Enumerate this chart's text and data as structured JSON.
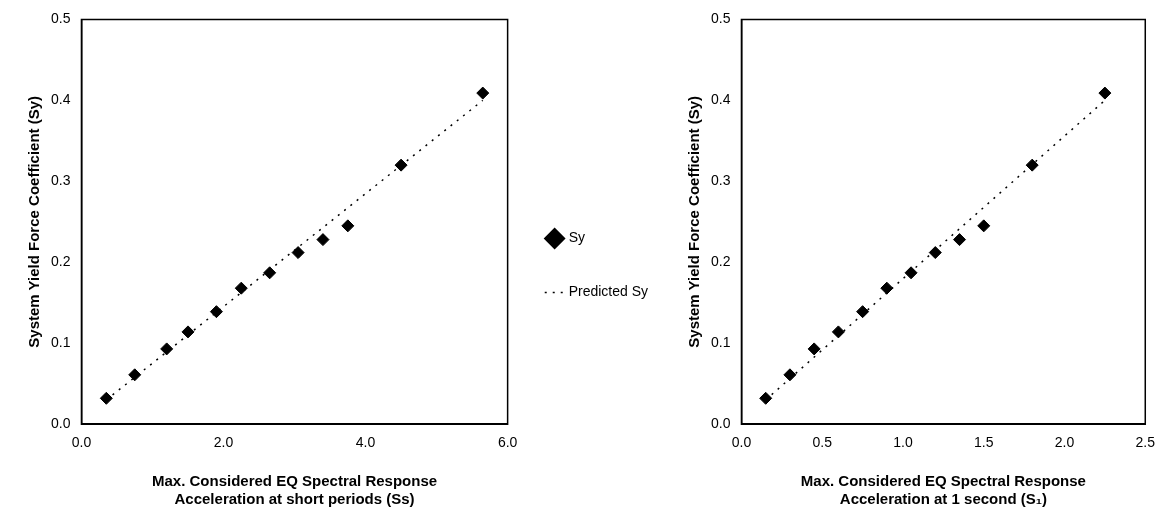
{
  "chart_data": [
    {
      "type": "scatter",
      "xlabel": "Max. Considered EQ Spectral Response Acceleration at short periods (Ss)",
      "ylabel": "System Yield Force Coefficient (Sy)",
      "xlim": [
        0,
        6
      ],
      "xticks": [
        {
          "value": 0,
          "label": "0.0"
        },
        {
          "value": 2,
          "label": "2.0"
        },
        {
          "value": 4,
          "label": "4.0"
        },
        {
          "value": 6,
          "label": "6.0"
        }
      ],
      "ylim": [
        0,
        0.5
      ],
      "yticks": [
        {
          "value": 0,
          "label": "0.0"
        },
        0.1,
        0.2,
        0.3,
        0.4,
        0.5
      ],
      "grid": false,
      "legend": "right",
      "series": [
        {
          "name": "Sy",
          "color": "#000000",
          "marker": "diamond",
          "x": [
            0.35,
            0.75,
            1.2,
            1.5,
            1.9,
            2.25,
            2.65,
            3.05,
            3.4,
            3.75,
            4.5,
            5.65
          ],
          "values": [
            0.032,
            0.061,
            0.093,
            0.114,
            0.139,
            0.168,
            0.187,
            0.212,
            0.228,
            0.245,
            0.32,
            0.409
          ]
        },
        {
          "name": "Predicted Sy",
          "type": "line",
          "color": "#000000",
          "marker": "none",
          "line_style": "dotted",
          "x": [
            0.35,
            5.65
          ],
          "values": [
            0.03,
            0.4
          ]
        }
      ]
    },
    {
      "type": "scatter",
      "xlabel": "Max. Considered EQ Spectral Response Acceleration at 1 second (S₁)",
      "ylabel": "System Yield Force Coefficient (Sy)",
      "xlim": [
        0,
        2.5
      ],
      "xticks": [
        {
          "value": 0,
          "label": "0.0"
        },
        {
          "value": 0.5,
          "label": "0.5"
        },
        {
          "value": 1,
          "label": "1.0"
        },
        {
          "value": 1.5,
          "label": "1.5"
        },
        {
          "value": 2,
          "label": "2.0"
        },
        {
          "value": 2.5,
          "label": "2.5"
        }
      ],
      "ylim": [
        0,
        0.5
      ],
      "yticks": [
        {
          "value": 0,
          "label": "0.0"
        },
        0.1,
        0.2,
        0.3,
        0.4,
        0.5
      ],
      "grid": false,
      "series": [
        {
          "color": "#000000",
          "marker": "diamond",
          "x": [
            0.15,
            0.3,
            0.45,
            0.6,
            0.75,
            0.9,
            1.05,
            1.2,
            1.35,
            1.5,
            1.8,
            2.25
          ],
          "values": [
            0.032,
            0.061,
            0.093,
            0.114,
            0.139,
            0.168,
            0.187,
            0.212,
            0.228,
            0.245,
            0.32,
            0.409
          ]
        },
        {
          "type": "line",
          "color": "#000000",
          "marker": "none",
          "line_style": "dotted",
          "x": [
            0.15,
            2.25
          ],
          "values": [
            0.03,
            0.4
          ]
        }
      ]
    }
  ]
}
